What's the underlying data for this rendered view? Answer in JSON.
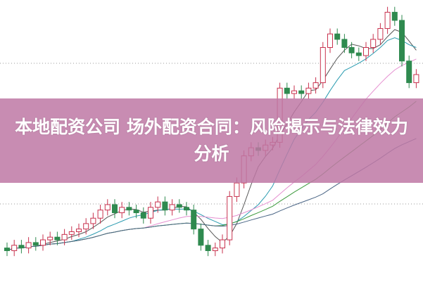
{
  "headline": "本地配资公司 场外配资合同：风险揭示与法律效力分析",
  "colors": {
    "up": "#c8324e",
    "down": "#2f8a4f",
    "banner": "#c48bb0",
    "grid": "#999999"
  },
  "chart_data": {
    "type": "candlestick",
    "title": "",
    "grid": "dotted horizontal",
    "ylim": [
      0,
      102
    ],
    "open": [
      11,
      10,
      12,
      11,
      13,
      12,
      14,
      15,
      14,
      16,
      17,
      18,
      20,
      22,
      25,
      27,
      24,
      26,
      25,
      24,
      22,
      26,
      28,
      25,
      27,
      26,
      25,
      18,
      12,
      10,
      11,
      14,
      30,
      35,
      45,
      48,
      47,
      49,
      50,
      70,
      68,
      69,
      68,
      70,
      72,
      85,
      90,
      88,
      85,
      83,
      82,
      85,
      88,
      92,
      98,
      95,
      80,
      72
    ],
    "close": [
      10,
      12,
      11,
      13,
      12,
      14,
      15,
      14,
      16,
      17,
      18,
      20,
      22,
      25,
      27,
      24,
      26,
      25,
      24,
      22,
      26,
      28,
      25,
      27,
      26,
      25,
      18,
      12,
      10,
      11,
      14,
      30,
      35,
      45,
      48,
      47,
      49,
      50,
      70,
      68,
      69,
      68,
      70,
      72,
      85,
      90,
      88,
      85,
      83,
      82,
      85,
      88,
      92,
      98,
      95,
      80,
      72,
      75
    ],
    "high": [
      13,
      14,
      14,
      15,
      15,
      16,
      17,
      17,
      18,
      19,
      20,
      22,
      24,
      27,
      29,
      29,
      28,
      28,
      27,
      26,
      28,
      30,
      30,
      29,
      29,
      28,
      27,
      20,
      14,
      13,
      16,
      32,
      37,
      47,
      50,
      50,
      51,
      52,
      72,
      72,
      71,
      71,
      72,
      74,
      87,
      92,
      92,
      90,
      87,
      85,
      87,
      90,
      94,
      100,
      100,
      97,
      82,
      77
    ],
    "low": [
      8,
      8,
      9,
      9,
      10,
      10,
      12,
      12,
      12,
      14,
      15,
      16,
      18,
      20,
      23,
      22,
      22,
      23,
      22,
      20,
      20,
      24,
      23,
      23,
      24,
      23,
      16,
      10,
      8,
      8,
      9,
      12,
      28,
      33,
      43,
      45,
      45,
      47,
      48,
      66,
      66,
      66,
      66,
      68,
      70,
      83,
      86,
      83,
      81,
      80,
      80,
      83,
      86,
      90,
      93,
      78,
      70,
      70
    ],
    "moving_averages": [
      {
        "period": 5,
        "color": "#555555"
      },
      {
        "period": 10,
        "color": "#2a9bb0"
      },
      {
        "period": 20,
        "color": "#e58fd0"
      },
      {
        "period": 30,
        "color": "#3d9a3d"
      },
      {
        "period": 45,
        "color": "#4a6585"
      }
    ]
  }
}
